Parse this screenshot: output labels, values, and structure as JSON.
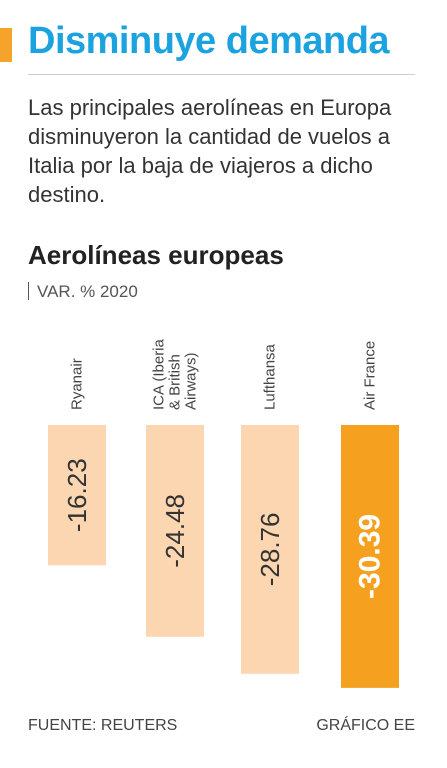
{
  "header": {
    "title": "Disminuye demanda",
    "subtitle": "Las principales aerolíneas en Europa disminuyeron la cantidad de vuelos a Italia por la baja de viajeros a dicho destino."
  },
  "chart_data": {
    "type": "bar",
    "title": "Aerolíneas europeas",
    "ylabel": "VAR. % 2020",
    "categories": [
      "Ryanair",
      "ICA (Iberia & British Airways)",
      "Lufthansa",
      "Air France"
    ],
    "category_lines": [
      [
        "Ryanair"
      ],
      [
        "ICA (Iberia",
        "& British",
        "Airways)"
      ],
      [
        "Lufthansa"
      ],
      [
        "Air France"
      ]
    ],
    "values": [
      -16.23,
      -24.48,
      -28.76,
      -30.39
    ],
    "value_labels": [
      "-16.23",
      "-24.48",
      "-28.76",
      "-30.39"
    ],
    "highlight_index": 3,
    "ylim": [
      -35,
      0
    ],
    "grid": false,
    "colors": {
      "bar": "#fbd6b0",
      "highlight": "#f5a01f",
      "label": "#333333",
      "highlight_label": "#ffffff"
    }
  },
  "footer": {
    "source": "FUENTE: REUTERS",
    "credit": "GRÁFICO EE"
  },
  "colors": {
    "accent": "#f5a32b",
    "title": "#1ba3e0"
  }
}
